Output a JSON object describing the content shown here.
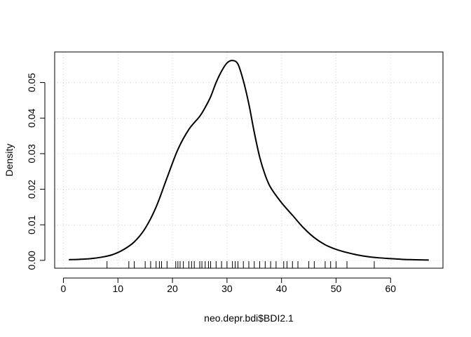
{
  "chart_data": {
    "type": "line",
    "title": "",
    "xlabel": "neo.depr.bdi$BDI2.1",
    "ylabel": "Density",
    "xlim": [
      -1.6,
      69.6
    ],
    "ylim": [
      -0.0022,
      0.0586
    ],
    "x_ticks": [
      0,
      10,
      20,
      30,
      40,
      50,
      60
    ],
    "y_ticks": [
      0.0,
      0.01,
      0.02,
      0.03,
      0.04,
      0.05
    ],
    "y_tick_labels": [
      "0.00",
      "0.01",
      "0.02",
      "0.03",
      "0.04",
      "0.05"
    ],
    "grid": true,
    "series": [
      {
        "x": [
          1,
          3,
          5,
          7,
          9,
          11,
          13,
          15,
          17,
          19,
          21,
          23,
          25,
          26,
          27,
          28,
          29,
          30,
          31,
          32,
          33,
          34,
          35,
          36,
          37,
          38,
          40,
          42,
          44,
          46,
          48,
          50,
          52,
          54,
          56,
          58,
          60,
          62,
          64,
          67
        ],
        "y": [
          0.0002,
          0.0003,
          0.0005,
          0.0009,
          0.0016,
          0.003,
          0.0052,
          0.009,
          0.015,
          0.0232,
          0.0312,
          0.0368,
          0.0405,
          0.043,
          0.046,
          0.05,
          0.0532,
          0.0555,
          0.0562,
          0.0552,
          0.0505,
          0.044,
          0.036,
          0.029,
          0.024,
          0.0205,
          0.0162,
          0.0127,
          0.0092,
          0.0064,
          0.0044,
          0.0031,
          0.0022,
          0.0015,
          0.001,
          0.0007,
          0.0005,
          0.0003,
          0.0002,
          0.0001
        ]
      }
    ],
    "rug": [
      8,
      12,
      13,
      15,
      16,
      17,
      17.6,
      18,
      19,
      20.6,
      21,
      21.4,
      22,
      23,
      23.5,
      24,
      25,
      25.4,
      26,
      26.6,
      27,
      28,
      29,
      30,
      31,
      31.5,
      32,
      33,
      34,
      35,
      36,
      37,
      38,
      39,
      40.4,
      41,
      42,
      43,
      45,
      46,
      48,
      49,
      50,
      52,
      57
    ]
  }
}
